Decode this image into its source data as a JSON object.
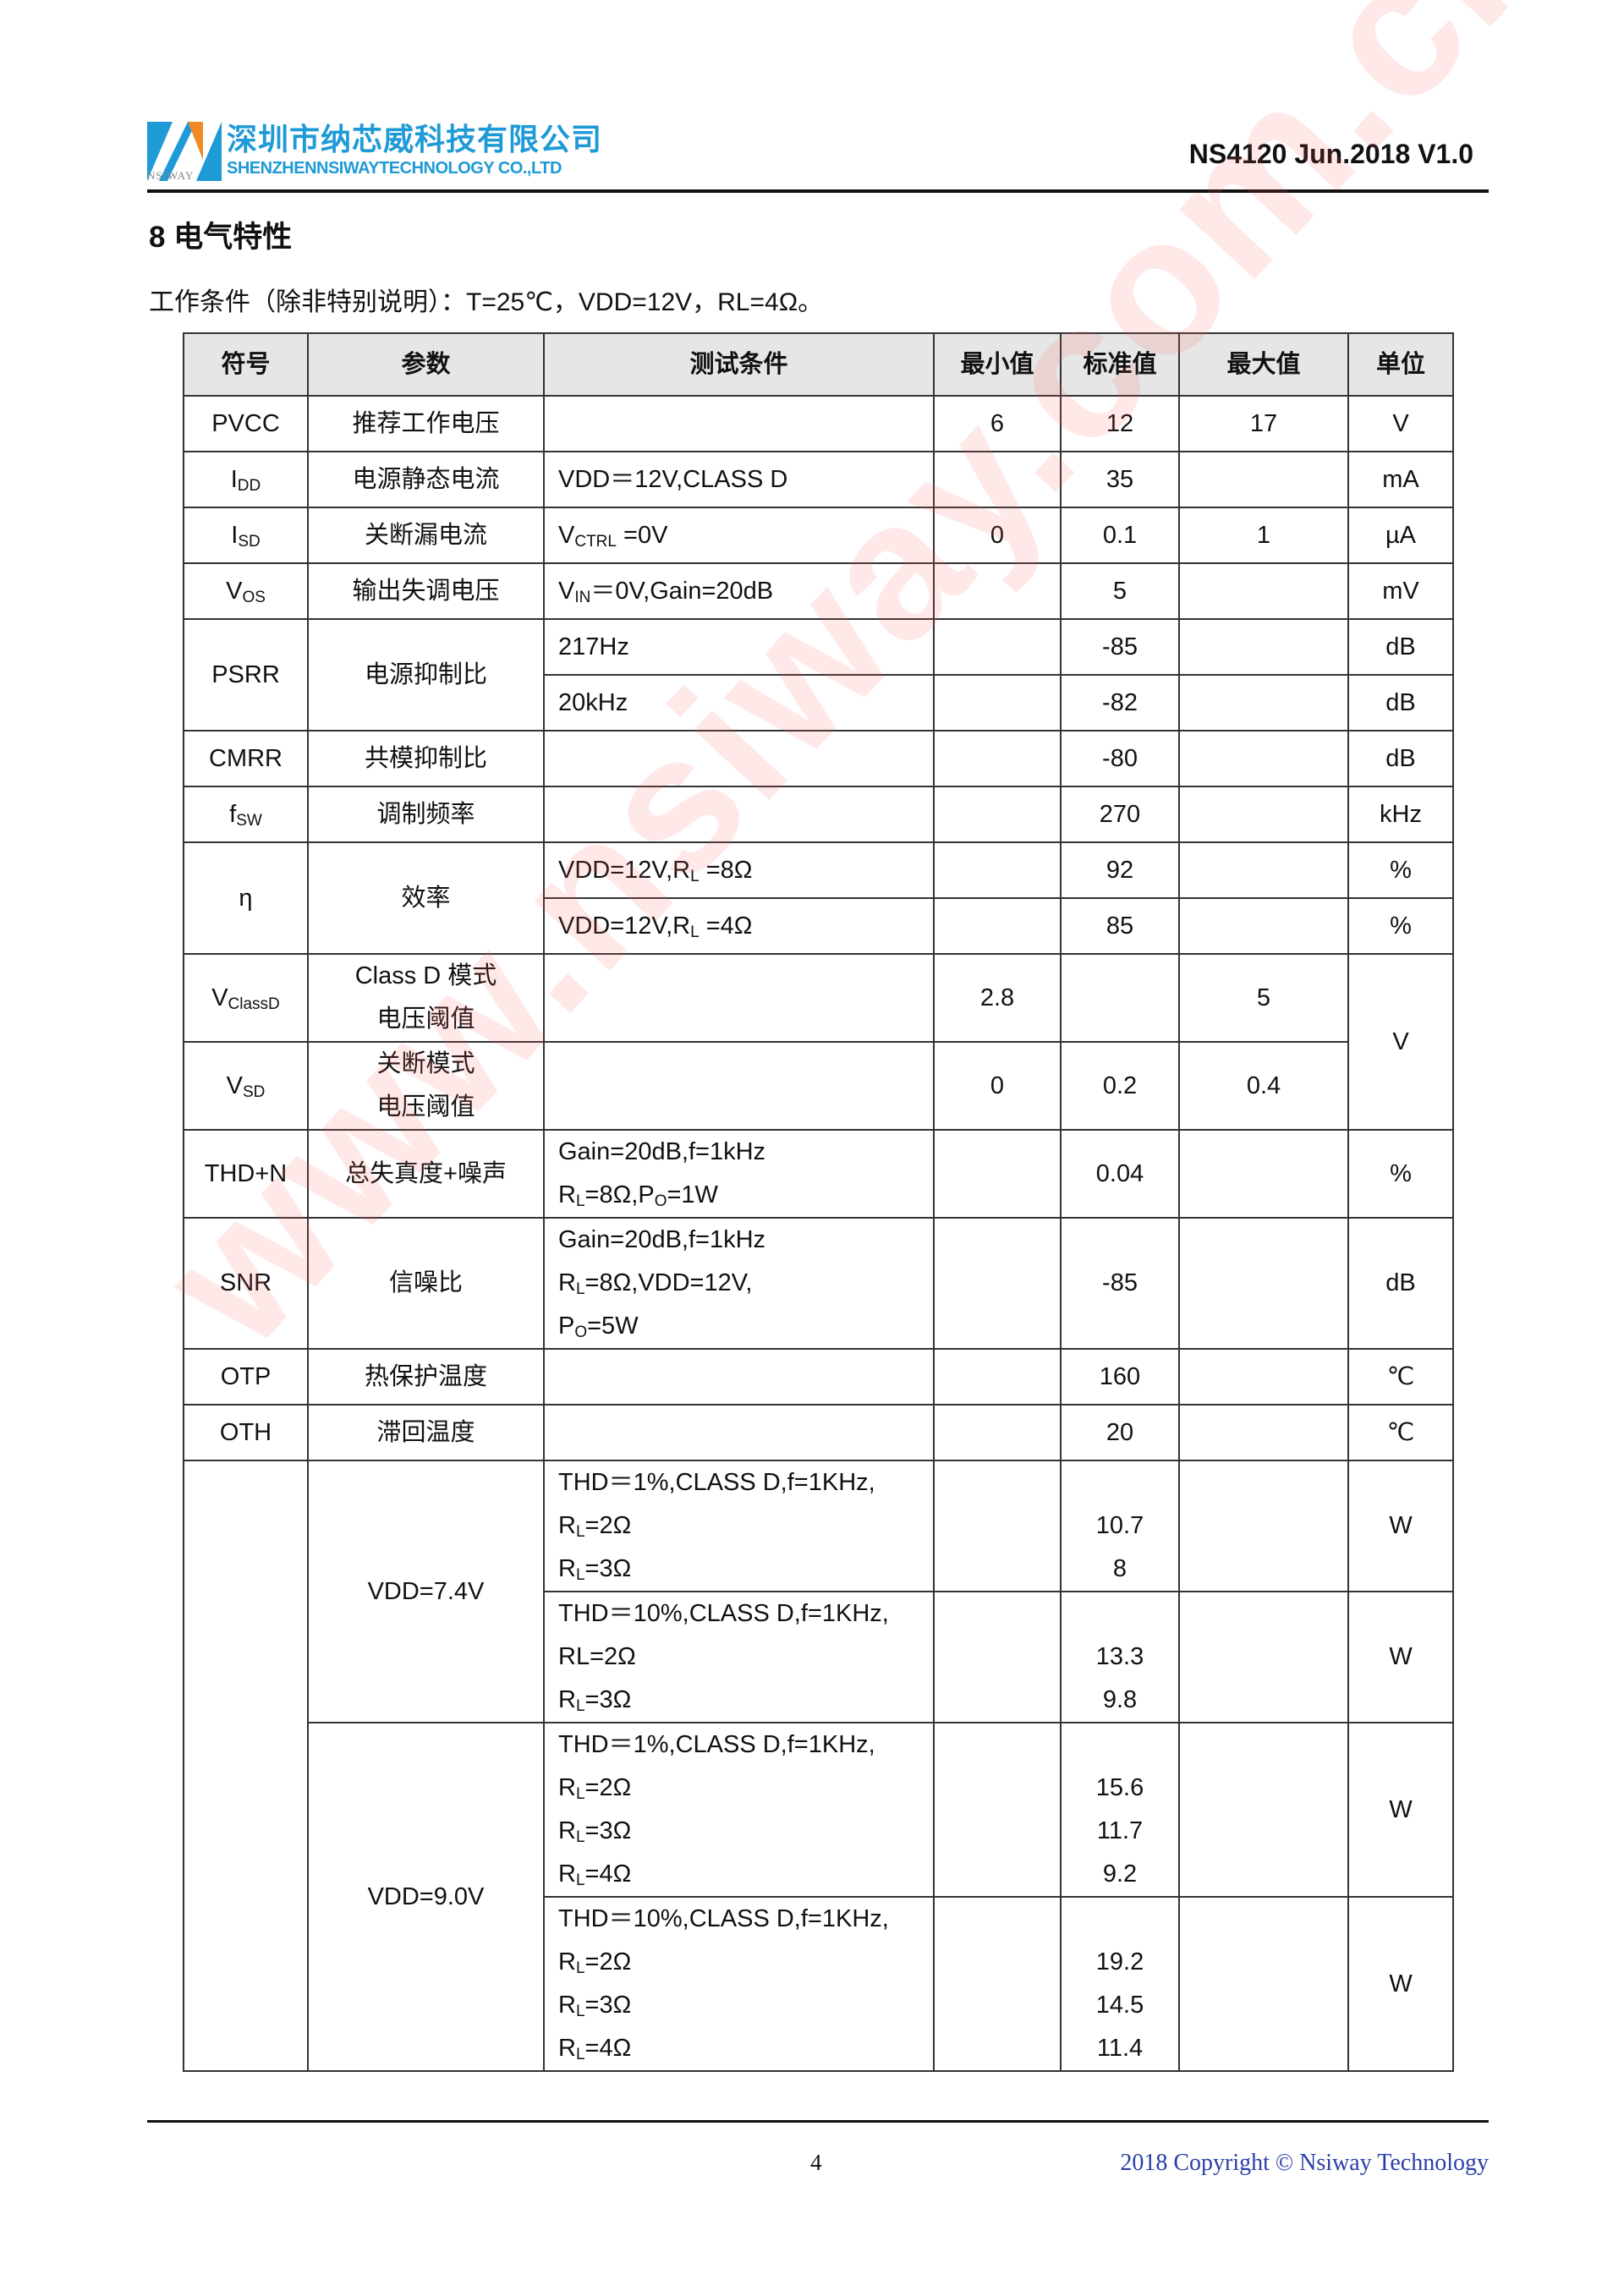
{
  "header": {
    "company_cn": "深圳市纳芯威科技有限公司",
    "company_en": "SHENZHENNSIWAYTECHNOLOGY CO.,LTD",
    "logo_small": "NSIWAY",
    "doc_id": "NS4120 Jun.2018 V1.0",
    "colors": {
      "brand_blue": "#1e9ad6",
      "brand_orange": "#f08a24"
    }
  },
  "section": {
    "title": "8  电气特性",
    "conditions": "工作条件（除非特别说明）：T=25℃，VDD=12V，RL=4Ω。"
  },
  "table": {
    "headers": [
      "符号",
      "参数",
      "测试条件",
      "最小值",
      "标准值",
      "最大值",
      "单位"
    ],
    "rows": [
      [
        {
          "t": "PVCC"
        },
        {
          "t": "推荐工作电压"
        },
        {
          "t": "",
          "c": 1
        },
        {
          "t": "6"
        },
        {
          "t": "12"
        },
        {
          "t": "17"
        },
        {
          "t": "V"
        }
      ],
      [
        {
          "t": "I_{DD}"
        },
        {
          "t": "电源静态电流"
        },
        {
          "t": "VDD＝12V,CLASS D",
          "c": 1
        },
        {
          "t": ""
        },
        {
          "t": "35"
        },
        {
          "t": ""
        },
        {
          "t": "mA"
        }
      ],
      [
        {
          "t": "I_{SD}"
        },
        {
          "t": "关断漏电流"
        },
        {
          "t": "V_{CTRL} =0V",
          "c": 1
        },
        {
          "t": "0"
        },
        {
          "t": "0.1"
        },
        {
          "t": "1"
        },
        {
          "t": "µA"
        }
      ],
      [
        {
          "t": "V_{OS}"
        },
        {
          "t": "输出失调电压"
        },
        {
          "t": "V_{IN}＝0V,Gain=20dB",
          "c": 1
        },
        {
          "t": ""
        },
        {
          "t": "5"
        },
        {
          "t": ""
        },
        {
          "t": "mV"
        }
      ],
      [
        {
          "t": "PSRR",
          "rs": 2
        },
        {
          "t": "电源抑制比",
          "rs": 2
        },
        {
          "t": "217Hz",
          "c": 1
        },
        {
          "t": ""
        },
        {
          "t": "-85"
        },
        {
          "t": ""
        },
        {
          "t": "dB"
        }
      ],
      [
        {
          "t": "20kHz",
          "c": 1
        },
        {
          "t": ""
        },
        {
          "t": "-82"
        },
        {
          "t": ""
        },
        {
          "t": "dB"
        }
      ],
      [
        {
          "t": "CMRR"
        },
        {
          "t": "共模抑制比"
        },
        {
          "t": "",
          "c": 1
        },
        {
          "t": ""
        },
        {
          "t": "-80"
        },
        {
          "t": ""
        },
        {
          "t": "dB"
        }
      ],
      [
        {
          "t": "f_{SW}"
        },
        {
          "t": "调制频率"
        },
        {
          "t": "",
          "c": 1
        },
        {
          "t": ""
        },
        {
          "t": "270"
        },
        {
          "t": ""
        },
        {
          "t": "kHz"
        }
      ],
      [
        {
          "t": "η",
          "rs": 2
        },
        {
          "t": "效率",
          "rs": 2
        },
        {
          "t": "VDD=12V,R_{L} =8Ω",
          "c": 1
        },
        {
          "t": ""
        },
        {
          "t": "92"
        },
        {
          "t": ""
        },
        {
          "t": "%"
        }
      ],
      [
        {
          "t": "VDD=12V,R_{L} =4Ω",
          "c": 1
        },
        {
          "t": ""
        },
        {
          "t": "85"
        },
        {
          "t": ""
        },
        {
          "t": "%"
        }
      ],
      [
        {
          "t": "V_{ClassD}"
        },
        {
          "t": "Class D 模式\n电压阈值"
        },
        {
          "t": "",
          "c": 1
        },
        {
          "t": "2.8"
        },
        {
          "t": ""
        },
        {
          "t": "5"
        },
        {
          "t": "V",
          "rs": 2
        }
      ],
      [
        {
          "t": "V_{SD}"
        },
        {
          "t": "关断模式\n电压阈值"
        },
        {
          "t": "",
          "c": 1
        },
        {
          "t": "0"
        },
        {
          "t": "0.2"
        },
        {
          "t": "0.4"
        }
      ],
      [
        {
          "t": "THD+N"
        },
        {
          "t": "总失真度+噪声"
        },
        {
          "t": "Gain=20dB,f=1kHz\nR_{L}=8Ω,P_{O}=1W",
          "c": 1
        },
        {
          "t": ""
        },
        {
          "t": "0.04"
        },
        {
          "t": ""
        },
        {
          "t": "%"
        }
      ],
      [
        {
          "t": "SNR"
        },
        {
          "t": "信噪比"
        },
        {
          "t": "Gain=20dB,f=1kHz\nR_{L}=8Ω,VDD=12V,\nP_{O}=5W",
          "c": 1
        },
        {
          "t": ""
        },
        {
          "t": "-85"
        },
        {
          "t": ""
        },
        {
          "t": "dB"
        }
      ],
      [
        {
          "t": "OTP"
        },
        {
          "t": "热保护温度"
        },
        {
          "t": "",
          "c": 1
        },
        {
          "t": ""
        },
        {
          "t": "160"
        },
        {
          "t": ""
        },
        {
          "t": "℃"
        }
      ],
      [
        {
          "t": "OTH"
        },
        {
          "t": "滞回温度"
        },
        {
          "t": "",
          "c": 1
        },
        {
          "t": ""
        },
        {
          "t": "20"
        },
        {
          "t": ""
        },
        {
          "t": "℃"
        }
      ],
      [
        {
          "t": "",
          "rs": 4
        },
        {
          "t": "VDD=7.4V",
          "rs": 2
        },
        {
          "t": "THD＝1%,CLASS D,f=1KHz,\nR_{L}=2Ω\nR_{L}=3Ω",
          "c": 1
        },
        {
          "t": ""
        },
        {
          "t": "\n10.7\n8"
        },
        {
          "t": ""
        },
        {
          "t": "W"
        }
      ],
      [
        {
          "t": "THD＝10%,CLASS D,f=1KHz,\nRL=2Ω\nR_{L}=3Ω",
          "c": 1
        },
        {
          "t": ""
        },
        {
          "t": "\n13.3\n9.8"
        },
        {
          "t": ""
        },
        {
          "t": "W"
        }
      ],
      [
        {
          "t": "VDD=9.0V",
          "rs": 2
        },
        {
          "t": "THD＝1%,CLASS D,f=1KHz,\nR_{L}=2Ω\nR_{L}=3Ω\nR_{L}=4Ω",
          "c": 1
        },
        {
          "t": ""
        },
        {
          "t": "\n15.6\n11.7\n9.2"
        },
        {
          "t": ""
        },
        {
          "t": "W"
        }
      ],
      [
        {
          "t": "THD＝10%,CLASS D,f=1KHz,\nR_{L}=2Ω\nR_{L}=3Ω\nR_{L}=4Ω",
          "c": 1
        },
        {
          "t": ""
        },
        {
          "t": "\n19.2\n14.5\n11.4"
        },
        {
          "t": ""
        },
        {
          "t": "W"
        }
      ]
    ]
  },
  "watermark": "www.nsiway.com.cn",
  "footer": {
    "page_number": "4",
    "copyright": "2018 Copyright © Nsiway Technology"
  }
}
